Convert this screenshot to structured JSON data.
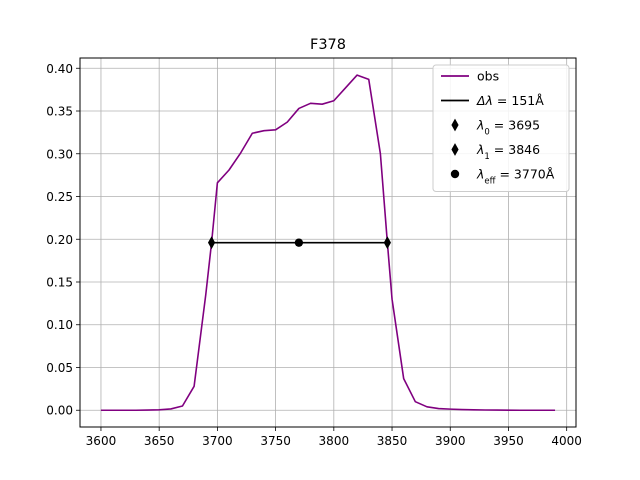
{
  "chart_data": {
    "type": "line",
    "title": "F378",
    "xlabel": "",
    "ylabel": "",
    "xlim": [
      3582,
      4008
    ],
    "ylim": [
      -0.0196,
      0.412
    ],
    "xticks": [
      3600,
      3650,
      3700,
      3750,
      3800,
      3850,
      3900,
      3950,
      4000
    ],
    "yticks": [
      0.0,
      0.05,
      0.1,
      0.15,
      0.2,
      0.25,
      0.3,
      0.35,
      0.4
    ],
    "xtick_labels": [
      "3600",
      "3650",
      "3700",
      "3750",
      "3800",
      "3850",
      "3900",
      "3950",
      "4000"
    ],
    "ytick_labels": [
      "0.00",
      "0.05",
      "0.10",
      "0.15",
      "0.20",
      "0.25",
      "0.30",
      "0.35",
      "0.40"
    ],
    "grid": true,
    "legend_position": "top-right",
    "series": [
      {
        "name": "obs",
        "kind": "line",
        "color": "#800080",
        "x": [
          3600,
          3610,
          3620,
          3630,
          3640,
          3650,
          3660,
          3670,
          3680,
          3690,
          3695,
          3700,
          3710,
          3720,
          3730,
          3740,
          3750,
          3760,
          3770,
          3780,
          3790,
          3800,
          3810,
          3820,
          3830,
          3840,
          3846,
          3850,
          3860,
          3870,
          3880,
          3890,
          3900,
          3910,
          3920,
          3930,
          3940,
          3950,
          3960,
          3970,
          3980,
          3990
        ],
        "y": [
          0.0,
          0.0,
          0.0,
          0.0,
          0.0002,
          0.0005,
          0.0015,
          0.005,
          0.028,
          0.135,
          0.196,
          0.266,
          0.281,
          0.301,
          0.324,
          0.327,
          0.328,
          0.337,
          0.353,
          0.359,
          0.358,
          0.362,
          0.377,
          0.392,
          0.387,
          0.3,
          0.196,
          0.13,
          0.037,
          0.01,
          0.004,
          0.002,
          0.0013,
          0.0008,
          0.0005,
          0.0003,
          0.0002,
          0.0001,
          0.0,
          0.0,
          0.0,
          0.0
        ]
      },
      {
        "name": "Δλ = 151Å",
        "label_math": "Δλ",
        "label_rest": " = 151Å",
        "kind": "line",
        "color": "#000000",
        "x": [
          3695,
          3846
        ],
        "y": [
          0.196,
          0.196
        ]
      },
      {
        "name": "λ0 = 3695",
        "label_math": "λ",
        "label_sub": "0",
        "label_rest": " = 3695",
        "kind": "marker",
        "marker": "thin_diamond",
        "color": "#000000",
        "x": [
          3695
        ],
        "y": [
          0.196
        ]
      },
      {
        "name": "λ1 = 3846",
        "label_math": "λ",
        "label_sub": "1",
        "label_rest": " = 3846",
        "kind": "marker",
        "marker": "thin_diamond",
        "color": "#000000",
        "x": [
          3846
        ],
        "y": [
          0.196
        ]
      },
      {
        "name": "λeff = 3770Å",
        "label_math": "λ",
        "label_sub": "eff",
        "label_rest": " = 3770Å",
        "kind": "marker",
        "marker": "circle",
        "color": "#000000",
        "x": [
          3770
        ],
        "y": [
          0.196
        ]
      }
    ]
  }
}
